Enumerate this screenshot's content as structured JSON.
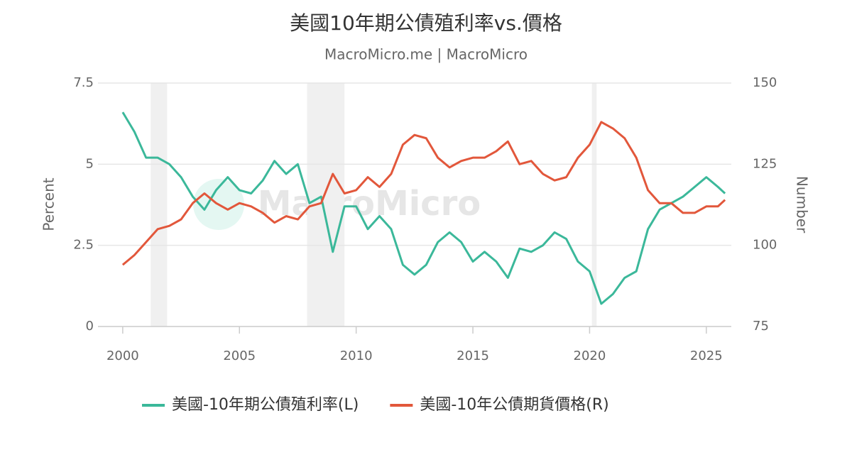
{
  "chart_data": {
    "type": "line",
    "title": "美國10年期公債殖利率vs.價格",
    "subtitle": "MacroMicro.me | MacroMicro",
    "watermark": "MacroMicro",
    "ylabel": "Percent",
    "y2label": "Number",
    "x": [
      2000,
      2000.5,
      2001,
      2001.5,
      2002,
      2002.5,
      2003,
      2003.5,
      2004,
      2004.5,
      2005,
      2005.5,
      2006,
      2006.5,
      2007,
      2007.5,
      2008,
      2008.5,
      2009,
      2009.5,
      2010,
      2010.5,
      2011,
      2011.5,
      2012,
      2012.5,
      2013,
      2013.5,
      2014,
      2014.5,
      2015,
      2015.5,
      2016,
      2016.5,
      2017,
      2017.5,
      2018,
      2018.5,
      2019,
      2019.5,
      2020,
      2020.5,
      2021,
      2021.5,
      2022,
      2022.5,
      2023,
      2023.5,
      2024,
      2024.5,
      2025,
      2025.5,
      2025.8
    ],
    "xlim": [
      1998.94,
      2026.07
    ],
    "xticks": [
      2000,
      2005,
      2010,
      2015,
      2020,
      2025
    ],
    "ylim": [
      0,
      7.5
    ],
    "yticks": [
      0,
      2.5,
      5,
      7.5
    ],
    "y2lim": [
      75,
      150
    ],
    "y2ticks": [
      75,
      100,
      125,
      150
    ],
    "shaded_ranges": [
      [
        2001.2,
        2001.9
      ],
      [
        2007.9,
        2009.5
      ],
      [
        2020.1,
        2020.3
      ]
    ],
    "grid": true,
    "legend": "bottom",
    "series": [
      {
        "name": "美國-10年期公債殖利率(L)",
        "color": "#3bb89a",
        "values": [
          6.6,
          6.0,
          5.2,
          5.2,
          5.0,
          4.6,
          4.0,
          3.6,
          4.2,
          4.6,
          4.2,
          4.1,
          4.5,
          5.1,
          4.7,
          5.0,
          3.8,
          4.0,
          2.3,
          3.7,
          3.7,
          3.0,
          3.4,
          3.0,
          1.9,
          1.6,
          1.9,
          2.6,
          2.9,
          2.6,
          2.0,
          2.3,
          2.0,
          1.5,
          2.4,
          2.3,
          2.5,
          2.9,
          2.7,
          2.0,
          1.7,
          0.7,
          1.0,
          1.5,
          1.7,
          3.0,
          3.6,
          3.8,
          4.0,
          4.3,
          4.6,
          4.3,
          4.1
        ]
      },
      {
        "name": "美國-10年公債期貨價格(R)",
        "color": "#e2573b",
        "axis": "y2",
        "values": [
          94,
          97,
          101,
          105,
          106,
          108,
          113,
          116,
          113,
          111,
          113,
          112,
          110,
          107,
          109,
          108,
          112,
          113,
          122,
          116,
          117,
          121,
          118,
          122,
          131,
          134,
          133,
          127,
          124,
          126,
          127,
          127,
          129,
          132,
          125,
          126,
          122,
          120,
          121,
          127,
          131,
          138,
          136,
          133,
          127,
          117,
          113,
          113,
          110,
          110,
          112,
          112,
          114
        ]
      }
    ]
  }
}
